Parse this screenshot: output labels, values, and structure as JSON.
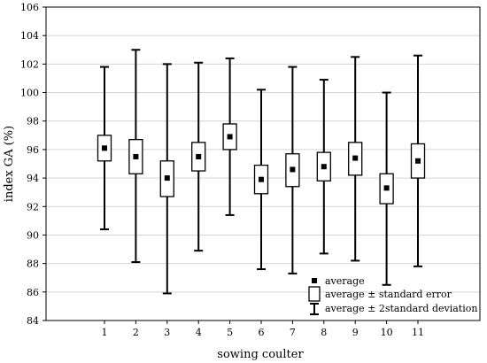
{
  "chart_data": {
    "type": "box",
    "title": "",
    "xlabel": "sowing coulter",
    "ylabel": "index GA (%)",
    "categories": [
      "1",
      "2",
      "3",
      "4",
      "5",
      "6",
      "7",
      "8",
      "9",
      "10",
      "11"
    ],
    "ylim": [
      84,
      106
    ],
    "yticks": [
      84,
      86,
      88,
      90,
      92,
      94,
      96,
      98,
      100,
      102,
      104,
      106
    ],
    "grid": true,
    "series": [
      {
        "name": "average",
        "values": [
          96.1,
          95.5,
          94.0,
          95.5,
          96.9,
          93.9,
          94.6,
          94.8,
          95.4,
          93.3,
          95.2
        ]
      },
      {
        "name": "average ± standard error",
        "low": [
          95.2,
          94.3,
          92.7,
          94.5,
          96.0,
          92.9,
          93.4,
          93.8,
          94.2,
          92.2,
          94.0
        ],
        "high": [
          97.0,
          96.7,
          95.2,
          96.5,
          97.8,
          94.9,
          95.7,
          95.8,
          96.5,
          94.3,
          96.4
        ]
      },
      {
        "name": "average ± 2standard deviation",
        "low": [
          90.4,
          88.1,
          85.9,
          88.9,
          91.4,
          87.6,
          87.3,
          88.7,
          88.2,
          86.5,
          87.8
        ],
        "high": [
          101.8,
          103.0,
          102.0,
          102.1,
          102.4,
          100.2,
          101.8,
          100.9,
          102.5,
          100.0,
          102.6
        ]
      }
    ],
    "legend": {
      "position": "bottom-right",
      "entries": [
        "average",
        "average ± standard error",
        "average ± 2standard deviation"
      ]
    }
  }
}
